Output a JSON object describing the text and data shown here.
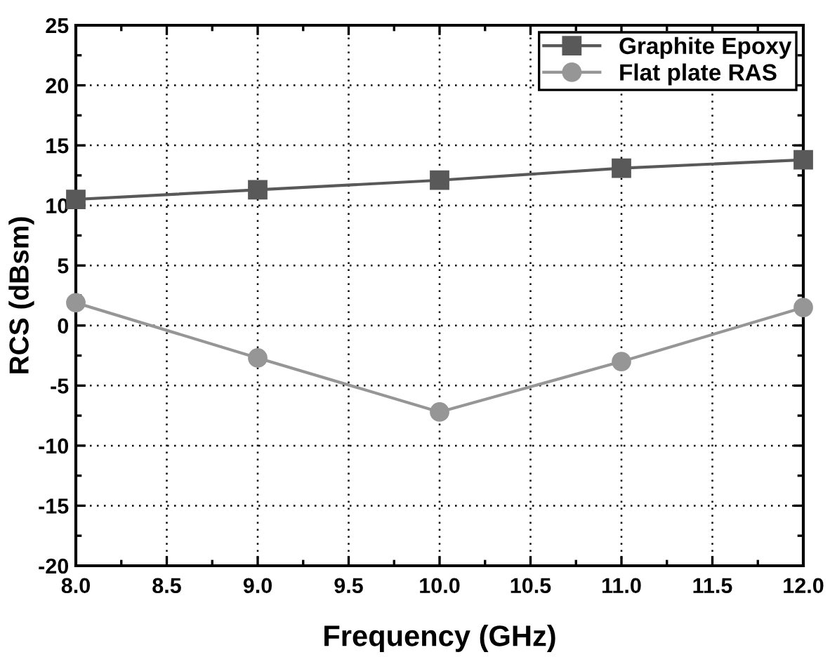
{
  "chart_data": {
    "type": "line",
    "xlabel": "Frequency (GHz)",
    "ylabel": "RCS (dBsm)",
    "x": [
      8,
      9,
      10,
      11,
      12
    ],
    "series": [
      {
        "name": "Graphite Epoxy",
        "color": "#595959",
        "values": [
          10.5,
          11.3,
          12.1,
          13.1,
          13.8
        ],
        "marker": "square"
      },
      {
        "name": "Flat plate RAS",
        "color": "#969696",
        "values": [
          1.9,
          -2.7,
          -7.2,
          -3.0,
          1.5
        ],
        "marker": "circle"
      }
    ],
    "xlim": [
      8,
      12
    ],
    "xticks": [
      {
        "value": 8,
        "label": "8.0"
      },
      {
        "value": 8.5,
        "label": "8.5"
      },
      {
        "value": 9,
        "label": "9.0"
      },
      {
        "value": 9.5,
        "label": "9.5"
      },
      {
        "value": 10,
        "label": "10.0"
      },
      {
        "value": 10.5,
        "label": "10.5"
      },
      {
        "value": 11,
        "label": "11.0"
      },
      {
        "value": 11.5,
        "label": "11.5"
      },
      {
        "value": 12,
        "label": "12.0"
      }
    ],
    "ylim": [
      -20,
      25
    ],
    "yticks": [
      -20,
      -15,
      -10,
      -5,
      0,
      5,
      10,
      15,
      20,
      25
    ],
    "grid": true,
    "legend": "top right",
    "line_style": "solid"
  }
}
